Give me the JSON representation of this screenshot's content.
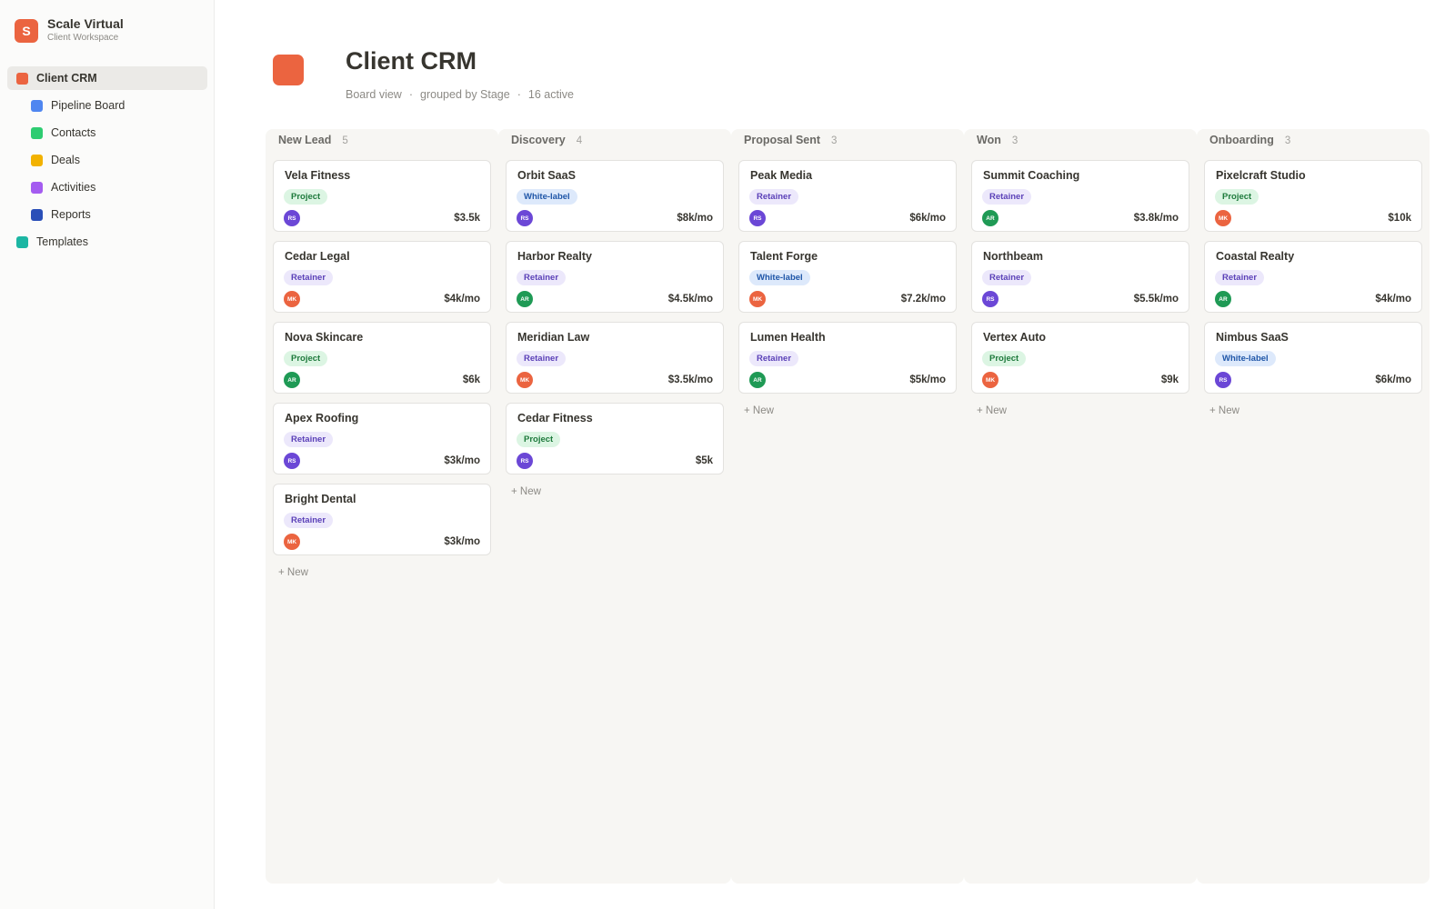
{
  "workspace": {
    "logo_letter": "S",
    "name": "Scale Virtual",
    "subtitle": "Client Workspace",
    "logo_color": "#eb6440"
  },
  "sidebar": {
    "items": [
      {
        "label": "Client CRM",
        "color": "#eb6440",
        "active": true,
        "level": 0
      },
      {
        "label": "Pipeline Board",
        "color": "#4f86f0",
        "active": false,
        "level": 1
      },
      {
        "label": "Contacts",
        "color": "#2ecc71",
        "active": false,
        "level": 1
      },
      {
        "label": "Deals",
        "color": "#f2b200",
        "active": false,
        "level": 1
      },
      {
        "label": "Activities",
        "color": "#a45cf0",
        "active": false,
        "level": 1
      },
      {
        "label": "Reports",
        "color": "#2a4fb8",
        "active": false,
        "level": 1
      },
      {
        "label": "Templates",
        "color": "#1cb6a3",
        "active": false,
        "level": 0
      }
    ]
  },
  "page": {
    "icon_color": "#eb6440",
    "title": "Client CRM",
    "meta": [
      "Board view",
      "grouped by Stage",
      "16 active"
    ]
  },
  "avatars": {
    "RS": "#6b47d6",
    "MK": "#eb6440",
    "AR": "#1f9a55"
  },
  "board": {
    "add_label": "+ New",
    "columns": [
      {
        "title": "New Lead",
        "count": "5",
        "cards": [
          {
            "name": "Vela Fitness",
            "tag": "Project",
            "owner": "RS",
            "amount": "$3.5k"
          },
          {
            "name": "Cedar Legal",
            "tag": "Retainer",
            "owner": "MK",
            "amount": "$4k/mo"
          },
          {
            "name": "Nova Skincare",
            "tag": "Project",
            "owner": "AR",
            "amount": "$6k"
          },
          {
            "name": "Apex Roofing",
            "tag": "Retainer",
            "owner": "RS",
            "amount": "$3k/mo"
          },
          {
            "name": "Bright Dental",
            "tag": "Retainer",
            "owner": "MK",
            "amount": "$3k/mo"
          }
        ]
      },
      {
        "title": "Discovery",
        "count": "4",
        "cards": [
          {
            "name": "Orbit SaaS",
            "tag": "White-label",
            "owner": "RS",
            "amount": "$8k/mo"
          },
          {
            "name": "Harbor Realty",
            "tag": "Retainer",
            "owner": "AR",
            "amount": "$4.5k/mo"
          },
          {
            "name": "Meridian Law",
            "tag": "Retainer",
            "owner": "MK",
            "amount": "$3.5k/mo"
          },
          {
            "name": "Cedar Fitness",
            "tag": "Project",
            "owner": "RS",
            "amount": "$5k"
          }
        ]
      },
      {
        "title": "Proposal Sent",
        "count": "3",
        "cards": [
          {
            "name": "Peak Media",
            "tag": "Retainer",
            "owner": "RS",
            "amount": "$6k/mo"
          },
          {
            "name": "Talent Forge",
            "tag": "White-label",
            "owner": "MK",
            "amount": "$7.2k/mo"
          },
          {
            "name": "Lumen Health",
            "tag": "Retainer",
            "owner": "AR",
            "amount": "$5k/mo"
          }
        ]
      },
      {
        "title": "Won",
        "count": "3",
        "cards": [
          {
            "name": "Summit Coaching",
            "tag": "Retainer",
            "owner": "AR",
            "amount": "$3.8k/mo"
          },
          {
            "name": "Northbeam",
            "tag": "Retainer",
            "owner": "RS",
            "amount": "$5.5k/mo"
          },
          {
            "name": "Vertex Auto",
            "tag": "Project",
            "owner": "MK",
            "amount": "$9k"
          }
        ]
      },
      {
        "title": "Onboarding",
        "count": "3",
        "cards": [
          {
            "name": "Pixelcraft Studio",
            "tag": "Project",
            "owner": "MK",
            "amount": "$10k"
          },
          {
            "name": "Coastal Realty",
            "tag": "Retainer",
            "owner": "AR",
            "amount": "$4k/mo"
          },
          {
            "name": "Nimbus SaaS",
            "tag": "White-label",
            "owner": "RS",
            "amount": "$6k/mo"
          }
        ]
      }
    ]
  }
}
